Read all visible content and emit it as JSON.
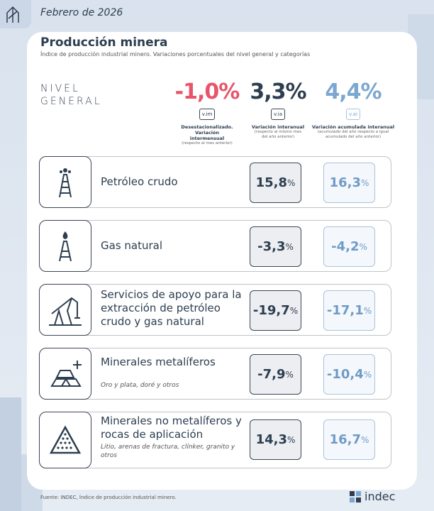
{
  "header": {
    "date": "Febrero de 2026"
  },
  "title": "Producción minera",
  "subtitle": "Índice de producción industrial minero. Variaciones porcentuales del nivel general y categorías",
  "general": {
    "label": "NIVEL GENERAL",
    "indicators": [
      {
        "value": "-1,0%",
        "badge": "v.im",
        "caption": "Desestacionalizado. Variación intermensual",
        "note": "(respecto al mes anterior)"
      },
      {
        "value": "3,3%",
        "badge": "v.ia",
        "caption": "Variación interanual",
        "note": "(respecto al mismo mes del año anterior)"
      },
      {
        "value": "4,4%",
        "badge": "v.ai",
        "caption": "Variación acumulada interanual",
        "note": "(acumulado del año respecto a igual acumulado del año anterior)"
      }
    ]
  },
  "rows": [
    {
      "label": "Petróleo crudo",
      "values": [
        {
          "number": "15,8",
          "unit": "%"
        },
        {
          "number": "16,3",
          "unit": "%"
        }
      ]
    },
    {
      "label": "Gas natural",
      "values": [
        {
          "number": "-3,3",
          "unit": "%"
        },
        {
          "number": "-4,2",
          "unit": "%"
        }
      ]
    },
    {
      "label": "Servicios de apoyo para la extracción de petróleo crudo y gas natural",
      "values": [
        {
          "number": "-19,7",
          "unit": "%"
        },
        {
          "number": "-17,1",
          "unit": "%"
        }
      ]
    },
    {
      "label": "Minerales metalíferos",
      "detail": "Oro y plata, doré y otros",
      "values": [
        {
          "number": "-7,9",
          "unit": "%"
        },
        {
          "number": "-10,4",
          "unit": "%"
        }
      ]
    },
    {
      "label": "Minerales no metalíferos y rocas de aplicación",
      "detail": "Litio, arenas de fractura, clínker, granito y otros",
      "values": [
        {
          "number": "14,3",
          "unit": "%"
        },
        {
          "number": "16,7",
          "unit": "%"
        }
      ]
    }
  ],
  "footer": {
    "source": "Fuente: INDEC, Índice de producción industrial minero.",
    "logo": "indec"
  }
}
